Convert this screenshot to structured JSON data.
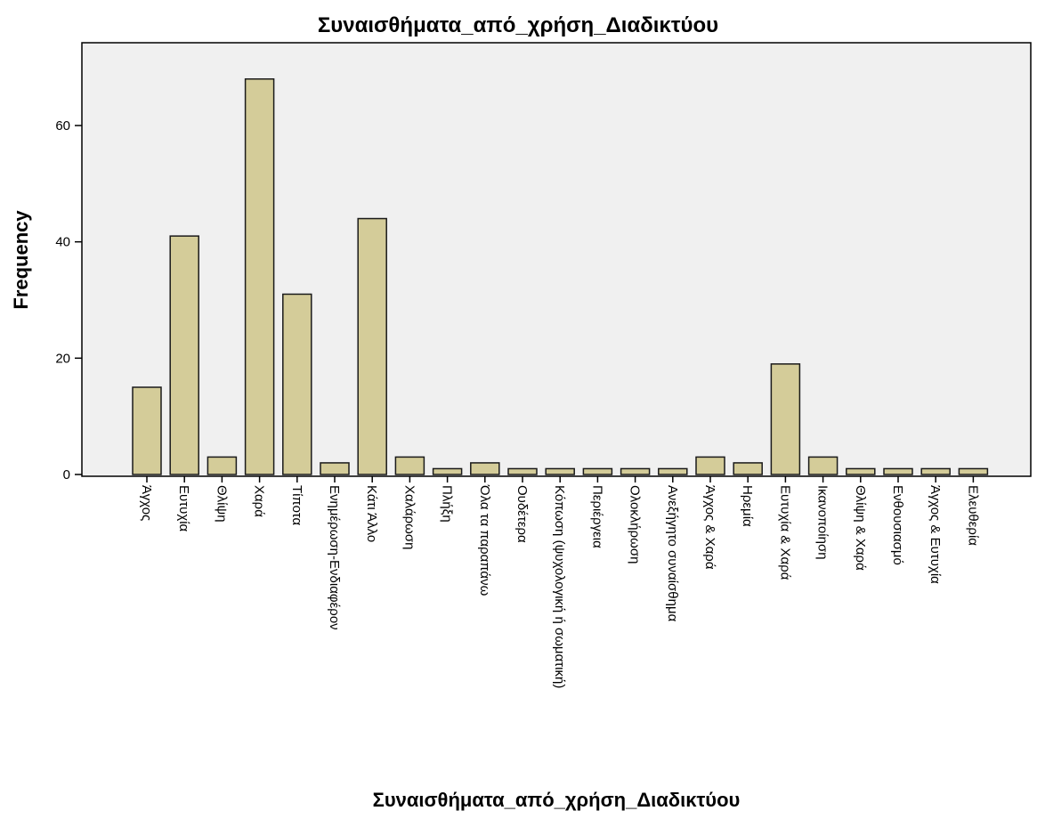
{
  "chart_data": {
    "type": "bar",
    "title": "Συναισθήματα_από_χρήση_Διαδικτύου",
    "xlabel": "Συναισθήματα_από_χρήση_Διαδικτύου",
    "ylabel": "Frequency",
    "ylim": [
      0,
      72
    ],
    "yticks": [
      0,
      20,
      40,
      60
    ],
    "grid": false,
    "colors": {
      "bar_fill": "#d4cc99",
      "bar_stroke": "#1a1a1a",
      "plot_background": "#f0f0f0",
      "frame": "#000000"
    },
    "categories": [
      "Άγχος",
      "Ευτυχία",
      "Θλίψη",
      "Χαρά",
      "Τίποτα",
      "Ενημέρωση-Ενδιαφέρον",
      "Κάτι Άλλο",
      "Χαλάρωση",
      "Πλήξη",
      "Όλα τα παραπάνω",
      "Ουδέτερα",
      "Κόπωση (ψυχολογική ή σωματική)",
      "Περιέργεια",
      "Ολοκλήρωση",
      "Ανεξήγητο συναίσθημα",
      "Άγχος & Χαρά",
      "Ηρεμία",
      "Ευτυχία & Χαρά",
      "Ικανοποίηση",
      "Θλίψη & Χαρά",
      "Ενθουσιασμό",
      "Άγχος & Ευτυχία",
      "Ελευθερία"
    ],
    "values": [
      15,
      41,
      3,
      68,
      31,
      2,
      44,
      3,
      1,
      2,
      1,
      1,
      1,
      1,
      1,
      3,
      2,
      19,
      3,
      1,
      1,
      1,
      1
    ]
  }
}
